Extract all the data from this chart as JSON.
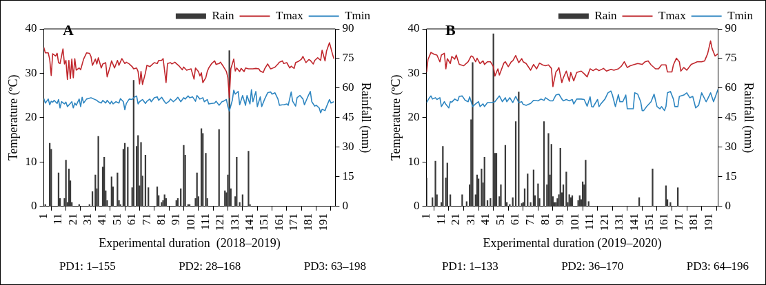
{
  "chart_data": [
    {
      "type": "line",
      "title": "A",
      "xlabel": "Experimental duration  (2018–2019)",
      "ylabel": "Temperature (ºC)",
      "y2label": "Rainfall (mm)",
      "legend": "top right",
      "annotations": [
        "PD1: 1–155",
        "PD2: 28–168",
        "PD3: 63–198"
      ],
      "xlim": [
        1,
        199
      ],
      "xticks": [
        1,
        11,
        21,
        31,
        41,
        51,
        61,
        71,
        81,
        91,
        101,
        111,
        121,
        131,
        141,
        151,
        161,
        171,
        181,
        191
      ],
      "ylim": [
        0,
        40
      ],
      "yticks": [
        0,
        10,
        20,
        30,
        40
      ],
      "y2lim": [
        0,
        90
      ],
      "y2ticks": [
        0,
        15,
        30,
        45,
        60,
        75,
        90
      ],
      "series": [
        {
          "name": "Rain",
          "type": "bar",
          "axis": "y2",
          "color": "#3a3a3a",
          "x": [
            2,
            5,
            6,
            11,
            12,
            15,
            16,
            17,
            18,
            19,
            20,
            25,
            32,
            34,
            36,
            37,
            38,
            41,
            42,
            43,
            44,
            47,
            48,
            51,
            52,
            53,
            55,
            56,
            58,
            61,
            62,
            64,
            65,
            66,
            67,
            68,
            70,
            72,
            78,
            79,
            81,
            82,
            83,
            84,
            91,
            92,
            94,
            96,
            97,
            99,
            100,
            104,
            105,
            106,
            108,
            109,
            111,
            112,
            120,
            124,
            125,
            126,
            127,
            128,
            131,
            132,
            134,
            136,
            140,
            141
          ],
          "values": [
            1,
            32,
            29,
            17,
            4,
            4,
            23.5,
            2,
            19,
            13,
            2,
            1,
            1,
            7.5,
            16,
            9,
            35.5,
            20,
            25,
            8,
            3,
            15,
            10,
            17,
            3,
            1,
            29,
            32,
            30,
            9.5,
            64,
            30.5,
            36,
            10.5,
            32.5,
            15.5,
            26,
            9.5,
            10,
            5.5,
            2,
            3,
            6,
            4,
            3,
            4,
            9,
            31,
            26,
            1,
            1,
            4,
            17,
            5,
            39.5,
            37,
            27,
            4,
            39,
            8,
            7,
            16,
            79,
            9,
            5,
            25,
            2,
            6,
            28,
            1
          ]
        },
        {
          "name": "Tmax",
          "color": "#c0272d",
          "x": [
            1,
            2,
            4,
            5,
            6,
            7,
            9,
            10,
            11,
            12,
            14,
            15,
            16,
            17,
            18,
            19,
            20,
            21,
            22,
            23,
            25,
            26,
            28,
            30,
            32,
            33,
            34,
            36,
            37,
            38,
            40,
            41,
            43,
            44,
            46,
            47,
            49,
            51,
            52,
            54,
            56,
            57,
            59,
            61,
            62,
            64,
            65,
            66,
            67,
            68,
            70,
            71,
            73,
            74,
            76,
            78,
            79,
            81,
            82,
            84,
            85,
            87,
            88,
            90,
            91,
            93,
            95,
            96,
            98,
            99,
            101,
            103,
            104,
            106,
            107,
            108,
            109,
            111,
            112,
            113,
            115,
            117,
            118,
            120,
            121,
            123,
            125,
            126,
            127,
            128,
            130,
            131,
            132,
            134,
            135,
            137,
            138,
            140,
            142,
            143,
            145,
            147,
            148,
            150,
            151,
            153,
            155,
            156,
            158,
            160,
            161,
            163,
            164,
            166,
            168,
            169,
            171,
            172,
            174,
            176,
            177,
            179,
            181,
            182,
            184,
            185,
            187,
            189,
            190,
            192,
            193,
            195,
            197,
            198
          ],
          "values": [
            35.8,
            34.6,
            34.6,
            33.1,
            29.5,
            34.4,
            33.9,
            34.5,
            32.4,
            32.2,
            35.5,
            32.1,
            32.9,
            28.6,
            32.9,
            28.8,
            33.2,
            29.0,
            33.3,
            30.7,
            31.2,
            30.8,
            33.2,
            34.6,
            34.5,
            33.8,
            31.8,
            33.2,
            32.1,
            33.5,
            31.2,
            32.1,
            32.4,
            29.2,
            31.5,
            32.8,
            31.2,
            32.9,
            31.8,
            33.3,
            32.2,
            32.5,
            32.1,
            31.5,
            31.0,
            31.2,
            30.4,
            27.6,
            30.4,
            27.5,
            30.1,
            31.8,
            31.5,
            31.8,
            32.4,
            32.2,
            32.9,
            32.9,
            33.3,
            27.9,
            32.2,
            32.4,
            32.1,
            32.5,
            32.2,
            31.6,
            30.8,
            31.4,
            30.7,
            30.8,
            31.0,
            28.7,
            31.2,
            30.4,
            29.4,
            30.1,
            27.9,
            29.0,
            30.4,
            31.2,
            32.2,
            32.8,
            32.0,
            32.2,
            32.5,
            31.5,
            30.4,
            29.0,
            24.5,
            31.0,
            33.2,
            30.5,
            31.2,
            30.4,
            31.1,
            30.4,
            31.2,
            31.0,
            31.0,
            31.0,
            31.1,
            31.0,
            30.5,
            30.2,
            31.0,
            32.1,
            31.0,
            31.1,
            31.4,
            32.1,
            32.5,
            32.8,
            32.2,
            32.4,
            31.2,
            31.6,
            31.1,
            32.4,
            32.7,
            33.2,
            33.8,
            32.4,
            33.1,
            32.9,
            32.1,
            32.9,
            33.5,
            32.9,
            35.2,
            32.8,
            35.0,
            36.9,
            34.4,
            33.3
          ]
        },
        {
          "name": "Tmin",
          "color": "#2e86c1",
          "x": [
            1,
            2,
            4,
            5,
            6,
            7,
            8,
            10,
            11,
            12,
            13,
            15,
            16,
            17,
            19,
            20,
            21,
            22,
            23,
            25,
            26,
            27,
            28,
            30,
            31,
            33,
            35,
            37,
            38,
            40,
            41,
            43,
            44,
            46,
            47,
            48,
            50,
            52,
            53,
            55,
            56,
            57,
            59,
            61,
            62,
            64,
            65,
            66,
            68,
            70,
            71,
            73,
            74,
            76,
            78,
            79,
            81,
            83,
            84,
            86,
            87,
            89,
            91,
            92,
            94,
            96,
            97,
            99,
            100,
            102,
            104,
            105,
            107,
            109,
            110,
            112,
            113,
            115,
            117,
            118,
            120,
            122,
            123,
            125,
            126,
            127,
            129,
            130,
            131,
            133,
            134,
            136,
            138,
            139,
            141,
            142,
            143,
            145,
            146,
            148,
            149,
            151,
            153,
            155,
            156,
            158,
            160,
            161,
            163,
            164,
            166,
            167,
            169,
            170,
            172,
            173,
            175,
            177,
            178,
            180,
            182,
            183,
            185,
            186,
            188,
            189,
            190,
            192,
            193,
            195,
            196,
            198
          ],
          "values": [
            24.3,
            23.3,
            24.2,
            22.9,
            23.7,
            23.5,
            23.9,
            23.2,
            24.1,
            22.2,
            23.6,
            23.1,
            23.5,
            22.5,
            23.2,
            23.6,
            22.2,
            23.3,
            22.8,
            24.2,
            22.5,
            24.6,
            23.3,
            24.2,
            24.3,
            24.5,
            24.2,
            23.9,
            23.6,
            23.3,
            23.9,
            23.3,
            23.9,
            23.1,
            23.7,
            23.1,
            23.6,
            23.3,
            24.3,
            23.6,
            21.8,
            23.2,
            24.2,
            24.1,
            24.5,
            24.9,
            23.1,
            23.6,
            24.1,
            23.2,
            23.7,
            24.2,
            23.6,
            24.5,
            24.7,
            23.9,
            24.6,
            23.6,
            23.2,
            23.7,
            24.2,
            23.6,
            24.2,
            24.6,
            23.6,
            24.5,
            24.2,
            24.9,
            24.5,
            24.7,
            23.7,
            25.0,
            24.2,
            24.5,
            23.6,
            24.1,
            23.1,
            23.2,
            23.3,
            23.7,
            22.8,
            23.6,
            23.7,
            24.1,
            22.5,
            21.5,
            23.9,
            26.2,
            25.3,
            25.9,
            22.9,
            25.0,
            22.8,
            25.0,
            23.1,
            26.3,
            23.6,
            25.9,
            22.5,
            24.7,
            22.5,
            24.2,
            25.6,
            25.8,
            25.3,
            25.6,
            24.2,
            22.8,
            22.9,
            22.9,
            23.1,
            22.8,
            25.8,
            23.7,
            22.6,
            24.5,
            25.0,
            24.2,
            22.9,
            24.5,
            25.9,
            23.6,
            22.6,
            22.8,
            22.2,
            21.1,
            21.9,
            21.6,
            22.5,
            24.1,
            23.3,
            23.6
          ]
        }
      ]
    },
    {
      "type": "line",
      "title": "B",
      "xlabel": "Experimental duration (2019–2020)",
      "ylabel": "Temperature (ºC)",
      "y2label": "Rainfall (mm)",
      "legend": "top right",
      "annotations": [
        "PD1: 1–133",
        "PD2: 36–170",
        "PD3: 64–196"
      ],
      "xlim": [
        1,
        197
      ],
      "xticks": [
        1,
        11,
        21,
        31,
        41,
        51,
        61,
        71,
        81,
        91,
        101,
        111,
        121,
        131,
        141,
        151,
        161,
        171,
        181,
        191
      ],
      "ylim": [
        0,
        40
      ],
      "yticks": [
        0,
        10,
        20,
        30,
        40
      ],
      "y2lim": [
        0,
        90
      ],
      "y2ticks": [
        0,
        15,
        30,
        45,
        60,
        75,
        90
      ],
      "series": [
        {
          "name": "Rain",
          "type": "bar",
          "axis": "y2",
          "color": "#3a3a3a",
          "x": [
            1,
            5,
            7,
            8,
            11,
            12,
            14,
            15,
            17,
            21,
            25,
            28,
            30,
            31,
            32,
            34,
            35,
            36,
            38,
            39,
            40,
            42,
            44,
            46,
            47,
            48,
            50,
            51,
            54,
            55,
            57,
            59,
            61,
            63,
            65,
            66,
            67,
            69,
            71,
            73,
            74,
            76,
            77,
            80,
            82,
            83,
            84,
            85,
            86,
            87,
            88,
            89,
            90,
            91,
            92,
            93,
            95,
            96,
            97,
            98,
            99,
            103,
            104,
            105,
            106,
            107,
            108,
            110,
            144,
            153,
            162,
            163,
            165,
            170
          ],
          "values": [
            14.5,
            4.5,
            23,
            6,
            2,
            30.5,
            14.5,
            22,
            6,
            null,
            6,
            2.5,
            11,
            44,
            73,
            6,
            16,
            14,
            19,
            12,
            25,
            3,
            4,
            87.5,
            27,
            27,
            5,
            11,
            31,
            2,
            1,
            4.5,
            43,
            58,
            1.5,
            2,
            9,
            16.5,
            2,
            18.5,
            5.5,
            11.5,
            4,
            43,
            11,
            37,
            16,
            31.5,
            5,
            2,
            2,
            4,
            6,
            29.5,
            7,
            11,
            17.5,
            2,
            6,
            4.5,
            5.5,
            3,
            5.5,
            3.5,
            12.5,
            11,
            23.5,
            2.5,
            4.5,
            19,
            10.5,
            3.5,
            2,
            9.5
          ]
        },
        {
          "name": "Tmax",
          "color": "#c0272d",
          "x": [
            1,
            2,
            4,
            6,
            8,
            10,
            11,
            13,
            14,
            15,
            17,
            18,
            20,
            21,
            23,
            26,
            28,
            29,
            31,
            32,
            34,
            35,
            37,
            39,
            40,
            42,
            44,
            46,
            47,
            49,
            50,
            51,
            53,
            54,
            56,
            58,
            59,
            61,
            63,
            65,
            66,
            68,
            71,
            73,
            75,
            77,
            79,
            81,
            83,
            85,
            86,
            88,
            89,
            90,
            92,
            93,
            95,
            97,
            98,
            100,
            102,
            105,
            107,
            109,
            111,
            113,
            115,
            117,
            120,
            122,
            125,
            127,
            130,
            132,
            134,
            136,
            138,
            141,
            143,
            146,
            148,
            150,
            152,
            155,
            157,
            159,
            162,
            163,
            166,
            167,
            169,
            171,
            172,
            174,
            176,
            179,
            181,
            183,
            186,
            188,
            190,
            192,
            193,
            195,
            197
          ],
          "values": [
            30.2,
            33.1,
            34.7,
            34.3,
            34.1,
            32.6,
            34.1,
            34.5,
            31.0,
            33.3,
            32.2,
            33.8,
            33.2,
            34.1,
            32.0,
            31.7,
            32.3,
            32.6,
            33.9,
            33.8,
            32.6,
            33.4,
            32.2,
            32.8,
            32.0,
            32.6,
            32.6,
            31.5,
            29.4,
            31.0,
            29.6,
            30.5,
            32.3,
            32.6,
            31.5,
            32.6,
            32.8,
            34.0,
            32.4,
            33.3,
            32.6,
            32.2,
            30.7,
            32.0,
            31.0,
            32.3,
            31.9,
            31.7,
            31.9,
            31.1,
            27.0,
            30.3,
            30.7,
            31.3,
            27.9,
            29.0,
            30.5,
            28.2,
            30.2,
            28.3,
            30.2,
            30.5,
            29.9,
            29.2,
            31.0,
            30.6,
            31.0,
            30.6,
            31.1,
            30.5,
            30.9,
            30.7,
            31.0,
            31.6,
            32.6,
            31.3,
            31.7,
            32.0,
            32.2,
            32.0,
            32.6,
            32.8,
            31.9,
            31.0,
            31.0,
            31.9,
            31.9,
            30.3,
            30.3,
            31.9,
            33.4,
            32.6,
            30.5,
            31.3,
            30.7,
            32.0,
            32.3,
            32.6,
            32.6,
            32.8,
            34.4,
            37.3,
            35.6,
            33.9,
            34.4
          ]
        },
        {
          "name": "Tmin",
          "color": "#2e86c1",
          "x": [
            1,
            3,
            4,
            5,
            7,
            8,
            10,
            11,
            13,
            14,
            16,
            17,
            18,
            20,
            22,
            23,
            25,
            27,
            29,
            30,
            32,
            34,
            36,
            37,
            39,
            40,
            42,
            45,
            47,
            50,
            52,
            54,
            55,
            57,
            59,
            61,
            63,
            65,
            66,
            68,
            71,
            73,
            76,
            78,
            80,
            81,
            84,
            86,
            88,
            90,
            92,
            93,
            95,
            97,
            99,
            100,
            102,
            105,
            107,
            109,
            111,
            112,
            113,
            116,
            117,
            118,
            121,
            123,
            125,
            126,
            128,
            130,
            131,
            133,
            135,
            136,
            138,
            140,
            141,
            143,
            145,
            146,
            147,
            149,
            152,
            154,
            156,
            158,
            159,
            161,
            162,
            163,
            165,
            167,
            168,
            170,
            171,
            174,
            176,
            178,
            180,
            182,
            184,
            186,
            189,
            190,
            192,
            194,
            197
          ],
          "values": [
            23.4,
            24.5,
            24.9,
            24.2,
            24.5,
            24.1,
            24.5,
            22.5,
            23.6,
            23.0,
            22.2,
            23.6,
            23.5,
            24.2,
            23.8,
            24.8,
            24.9,
            23.9,
            23.6,
            24.7,
            22.5,
            23.1,
            23.6,
            22.5,
            23.1,
            22.5,
            23.4,
            23.4,
            23.6,
            24.9,
            23.6,
            24.5,
            23.6,
            24.5,
            23.4,
            24.8,
            23.4,
            23.6,
            23.0,
            22.8,
            23.2,
            23.9,
            23.8,
            24.2,
            23.9,
            24.5,
            23.8,
            23.8,
            25.1,
            25.3,
            24.2,
            23.8,
            24.1,
            23.8,
            24.1,
            23.1,
            24.2,
            24.2,
            24.1,
            22.6,
            24.7,
            22.5,
            22.4,
            24.1,
            22.5,
            23.0,
            24.2,
            25.6,
            26.0,
            25.1,
            22.5,
            25.2,
            23.6,
            23.6,
            25.1,
            22.0,
            22.0,
            22.0,
            25.6,
            25.3,
            23.6,
            21.6,
            21.6,
            22.5,
            23.6,
            25.3,
            22.5,
            22.0,
            22.5,
            21.6,
            22.5,
            25.6,
            25.9,
            24.2,
            22.5,
            22.5,
            24.8,
            25.1,
            25.6,
            24.5,
            24.8,
            22.2,
            22.8,
            25.6,
            23.6,
            24.2,
            25.6,
            23.6,
            26.4
          ]
        }
      ]
    }
  ]
}
